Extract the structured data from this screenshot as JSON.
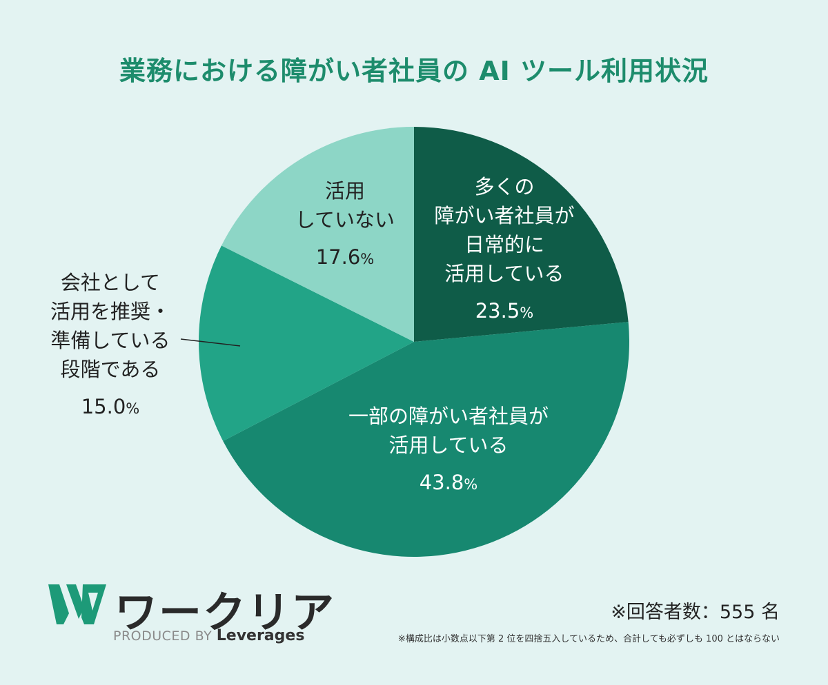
{
  "title": "業務における障がい者社員の AI ツール利用状況",
  "chart_data": {
    "type": "pie",
    "title": "業務における障がい者社員の AI ツール利用状況",
    "slices": [
      {
        "label": "多くの\n障がい者社員が\n日常的に\n活用している",
        "value": 23.5,
        "color": "#0f5c48"
      },
      {
        "label": "一部の障がい者社員が\n活用している",
        "value": 43.8,
        "color": "#178870"
      },
      {
        "label": "会社として\n活用を推奨・\n準備している\n段階である",
        "value": 15.0,
        "color": "#22a487"
      },
      {
        "label": "活用\nしていない",
        "value": 17.6,
        "color": "#8dd6c6"
      }
    ],
    "start_angle_deg": 0,
    "direction": "clockwise",
    "legend": "none"
  },
  "labels": [
    {
      "lines": [
        "多くの",
        "障がい者社員が",
        "日常的に",
        "活用している"
      ],
      "percent": "23.5",
      "unit": "%"
    },
    {
      "lines": [
        "一部の障がい者社員が",
        "活用している"
      ],
      "percent": "43.8",
      "unit": "%"
    },
    {
      "lines": [
        "会社として",
        "活用を推奨・",
        "準備している",
        "段階である"
      ],
      "percent": "15.0",
      "unit": "%"
    },
    {
      "lines": [
        "活用",
        "していない"
      ],
      "percent": "17.6",
      "unit": "%"
    }
  ],
  "logo": {
    "wordmark": "ワークリア",
    "produced_by": "PRODUCED BY",
    "company": "Leverages",
    "brand_color": "#1d9a78"
  },
  "respondents": "※回答者数：555 名",
  "footnote": "※構成比は小数点以下第 2 位を四捨五入しているため、合計しても必ずしも 100 とはならない"
}
